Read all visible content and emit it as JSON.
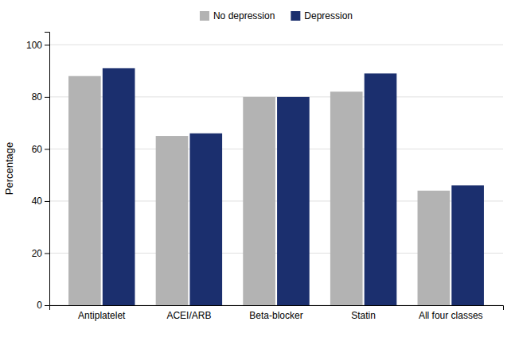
{
  "chart_data": {
    "type": "bar",
    "ylabel": "Percentage",
    "categories": [
      "Antiplatelet",
      "ACEI/ARB",
      "Beta-blocker",
      "Statin",
      "All four classes"
    ],
    "series": [
      {
        "name": "No depression",
        "color": "#b3b3b3",
        "values": [
          88,
          65,
          80,
          82,
          44
        ]
      },
      {
        "name": "Depression",
        "color": "#1b2f6e",
        "values": [
          91,
          66,
          80,
          89,
          46
        ]
      }
    ],
    "ylim": [
      0,
      105
    ],
    "yticks": [
      0,
      20,
      40,
      60,
      80,
      100
    ],
    "grid": true,
    "legend": "top"
  }
}
